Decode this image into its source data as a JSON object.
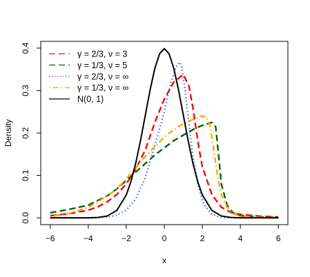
{
  "chart_data": {
    "type": "line",
    "title": "",
    "xlabel": "x",
    "ylabel": "Density",
    "xlim": [
      -6.5,
      6.5
    ],
    "ylim": [
      -0.016,
      0.416
    ],
    "xticks": [
      -6,
      -4,
      -2,
      0,
      2,
      4,
      6
    ],
    "xtick_labels": [
      "−6",
      "−4",
      "−2",
      "0",
      "2",
      "4",
      "6"
    ],
    "yticks": [
      0.0,
      0.1,
      0.2,
      0.3,
      0.4
    ],
    "ytick_labels": [
      "0.0",
      "0.1",
      "0.2",
      "0.3",
      "0.4"
    ],
    "grid": false,
    "legend_position": "top-left",
    "series": [
      {
        "name": "γ = 2/3, ν = 3",
        "color": "#ff0000",
        "dash": "dashed",
        "x": [
          -6,
          -5,
          -4,
          -3.5,
          -3,
          -2.5,
          -2,
          -1.5,
          -1,
          -0.5,
          0,
          0.5,
          1.0,
          1.3,
          1.5,
          1.8,
          2.0,
          2.5,
          3.0,
          3.5,
          4,
          5,
          6
        ],
        "y": [
          0.005,
          0.01,
          0.018,
          0.026,
          0.038,
          0.055,
          0.08,
          0.115,
          0.16,
          0.225,
          0.28,
          0.32,
          0.338,
          0.31,
          0.26,
          0.17,
          0.12,
          0.055,
          0.025,
          0.013,
          0.008,
          0.004,
          0.002
        ]
      },
      {
        "name": "γ = 1/3,   ν = 5",
        "color": "#006400",
        "dash": "dashed",
        "x": [
          -6,
          -5,
          -4,
          -3,
          -2.5,
          -2,
          -1.5,
          -1,
          -0.5,
          0,
          0.5,
          1,
          1.5,
          2,
          2.5,
          2.7,
          2.85,
          3.0,
          3.3,
          3.6,
          4,
          5,
          6
        ],
        "y": [
          0.012,
          0.02,
          0.03,
          0.052,
          0.068,
          0.088,
          0.108,
          0.128,
          0.148,
          0.165,
          0.182,
          0.195,
          0.208,
          0.218,
          0.225,
          0.215,
          0.15,
          0.08,
          0.03,
          0.012,
          0.005,
          0.002,
          0.001
        ]
      },
      {
        "name": "γ = 2/3, ν = ∞",
        "color": "#4169e1",
        "dash": "dotted",
        "x": [
          -6,
          -4,
          -3,
          -2.5,
          -2,
          -1.5,
          -1,
          -0.5,
          0,
          0.3,
          0.6,
          0.8,
          0.9,
          1.1,
          1.3,
          1.5,
          1.8,
          2.1,
          2.5,
          3,
          4,
          6
        ],
        "y": [
          0,
          0,
          0.0015,
          0.006,
          0.018,
          0.045,
          0.095,
          0.17,
          0.25,
          0.31,
          0.355,
          0.367,
          0.36,
          0.3,
          0.22,
          0.145,
          0.07,
          0.03,
          0.008,
          0.001,
          0,
          0
        ]
      },
      {
        "name": "γ = 1/3,   ν = ∞",
        "color": "#ffa500",
        "dash": "dotdash",
        "x": [
          -6,
          -5,
          -4,
          -3.5,
          -3,
          -2.5,
          -2,
          -1.5,
          -1,
          -0.5,
          0,
          0.5,
          1,
          1.5,
          2,
          2.2,
          2.4,
          2.6,
          2.8,
          3.0,
          3.3,
          3.6,
          4,
          5,
          6
        ],
        "y": [
          0.003,
          0.01,
          0.025,
          0.038,
          0.052,
          0.068,
          0.092,
          0.118,
          0.145,
          0.168,
          0.19,
          0.208,
          0.222,
          0.232,
          0.24,
          0.238,
          0.22,
          0.16,
          0.1,
          0.055,
          0.025,
          0.01,
          0.004,
          0.001,
          0
        ]
      },
      {
        "name": "N(0, 1)",
        "color": "#000000",
        "dash": "solid",
        "x": [
          -6,
          -4,
          -3.5,
          -3,
          -2.5,
          -2,
          -1.75,
          -1.5,
          -1.25,
          -1,
          -0.75,
          -0.5,
          -0.25,
          0,
          0.25,
          0.5,
          0.75,
          1,
          1.25,
          1.5,
          1.75,
          2,
          2.5,
          3,
          3.5,
          4,
          6
        ],
        "y": [
          0,
          0.0001,
          0.0009,
          0.0044,
          0.0175,
          0.054,
          0.0863,
          0.1295,
          0.1826,
          0.242,
          0.3011,
          0.3521,
          0.3867,
          0.3989,
          0.3867,
          0.3521,
          0.3011,
          0.242,
          0.1826,
          0.1295,
          0.0863,
          0.054,
          0.0175,
          0.0044,
          0.0009,
          0.0001,
          0
        ]
      }
    ]
  }
}
